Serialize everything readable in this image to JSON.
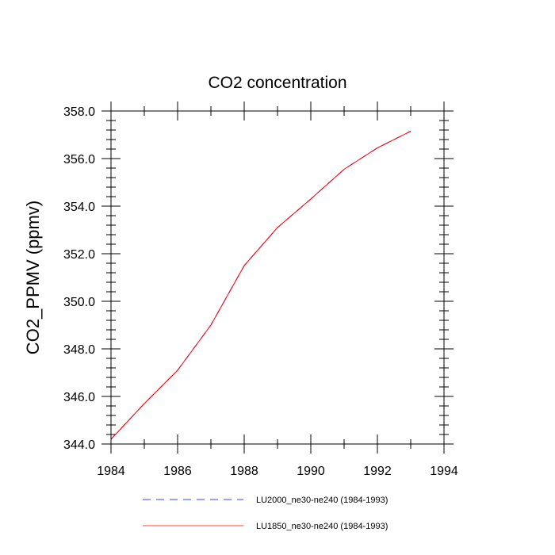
{
  "chart_data": {
    "type": "line",
    "title": "CO2 concentration",
    "xlabel": "",
    "ylabel": "CO2_PPMV  (ppmv)",
    "xlim": [
      1984,
      1994
    ],
    "ylim": [
      344.0,
      358.0
    ],
    "x_major_ticks": [
      1984,
      1986,
      1988,
      1990,
      1992,
      1994
    ],
    "x_minor_step": 1,
    "y_major_ticks": [
      344.0,
      346.0,
      348.0,
      350.0,
      352.0,
      354.0,
      356.0,
      358.0
    ],
    "y_minor_step": 0.4,
    "x_tick_labels": [
      "1984",
      "1986",
      "1988",
      "1990",
      "1992",
      "1994"
    ],
    "y_tick_labels": [
      "344.0",
      "346.0",
      "348.0",
      "350.0",
      "352.0",
      "354.0",
      "356.0",
      "358.0"
    ],
    "grid": false,
    "legend_position": "bottom",
    "x": [
      1984,
      1985,
      1986,
      1987,
      1988,
      1989,
      1990,
      1991,
      1992,
      1993
    ],
    "series": [
      {
        "name": "LU2000_ne30-ne240 (1984-1993)",
        "color": "#0000ff",
        "style": "dashed",
        "values": [
          344.2,
          345.7,
          347.1,
          349.0,
          351.5,
          353.1,
          354.3,
          355.55,
          356.45,
          357.15
        ]
      },
      {
        "name": "LU1850_ne30-ne240 (1984-1993)",
        "color": "#ff0000",
        "style": "solid",
        "values": [
          344.2,
          345.7,
          347.1,
          349.0,
          351.5,
          353.1,
          354.3,
          355.55,
          356.45,
          357.15
        ]
      }
    ]
  }
}
